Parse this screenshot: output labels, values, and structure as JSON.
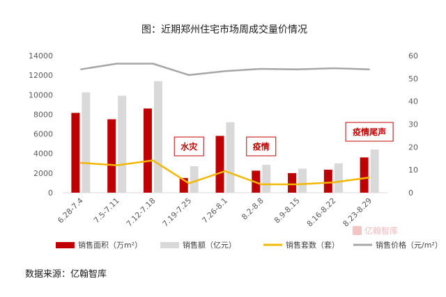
{
  "chart_data": {
    "type": "bar",
    "title": "图：近期郑州住宅市场周成交量价情况",
    "categories": [
      "6.28-7.4",
      "7.5-7.11",
      "7.12-7.18",
      "7.19-7.25",
      "7.26-8.1",
      "8.2-8.8",
      "8.9-8.15",
      "8.16-8.22",
      "8.23-8.29"
    ],
    "left_axis": {
      "min": 0,
      "max": 14000,
      "step": 2000,
      "ticks": [
        "0",
        "2000",
        "4000",
        "6000",
        "8000",
        "10000",
        "12000",
        "14000"
      ]
    },
    "right_axis": {
      "min": 0,
      "max": 60,
      "step": 10,
      "ticks": [
        "0",
        "10",
        "20",
        "30",
        "40",
        "50",
        "60"
      ]
    },
    "grid": false,
    "legend_position": "bottom",
    "series": [
      {
        "name": "销售面积（万m²）",
        "type": "bar",
        "axis": "left",
        "color": "#c00000",
        "values": [
          8150,
          7500,
          8600,
          1500,
          5800,
          2250,
          2000,
          2350,
          3600
        ]
      },
      {
        "name": "销售额（亿元）",
        "type": "bar",
        "axis": "left",
        "color": "#d9d9d9",
        "values": [
          10250,
          9900,
          11400,
          2700,
          7200,
          2850,
          2450,
          3000,
          4400
        ]
      },
      {
        "name": "销售套数（套）",
        "type": "line",
        "axis": "left",
        "color": "#f2b800",
        "values": [
          3050,
          2800,
          3300,
          950,
          2200,
          850,
          850,
          1050,
          1550
        ]
      },
      {
        "name": "销售价格（元/m²）",
        "type": "line",
        "axis": "right",
        "color": "#a6a6a6",
        "values": [
          54,
          56.5,
          56.5,
          51.5,
          53.2,
          54.2,
          54,
          54.5,
          54
        ]
      }
    ],
    "annotations": [
      {
        "text": "水灾",
        "category_index": 3
      },
      {
        "text": "疫情",
        "category_index": 5
      },
      {
        "text": "疫情尾声",
        "category_index": 8
      }
    ]
  },
  "source_label": "数据来源：亿翰智库",
  "watermark": "亿翰智库"
}
